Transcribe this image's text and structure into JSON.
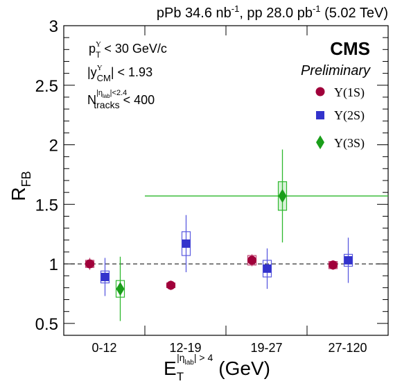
{
  "header": {
    "lumi_prefix": "pPb 34.6 nb",
    "lumi_sup1": "-1",
    "lumi_mid": ", pp 28.0 pb",
    "lumi_sup2": "-1",
    "lumi_suffix": " (5.02 TeV)"
  },
  "branding": {
    "experiment": "CMS",
    "status": "Preliminary"
  },
  "cuts": {
    "pt_main": "p",
    "pt_sup": "Υ",
    "pt_sub": "T",
    "pt_rest": " < 30 GeV/c",
    "y_main": "|y",
    "y_sup": "Υ",
    "y_sub": "CM",
    "y_rest": "| < 1.93",
    "n_main": "N",
    "n_sup": "|η",
    "n_sup_sub": "lab",
    "n_sup_rest": "|<2.4",
    "n_sub": "tracks",
    "n_rest": " < 400"
  },
  "axes": {
    "ylabel_main": "R",
    "ylabel_sub": "FB",
    "xlabel_main": "E",
    "xlabel_sub": "T",
    "xlabel_sup": "|η",
    "xlabel_sup_sub": "lab",
    "xlabel_sup_rest": "| > 4",
    "xlabel_unit": "(GeV)"
  },
  "colors": {
    "1S": "#a0003a",
    "2S": "#3333cc",
    "3S": "#1a9e1a"
  },
  "chart_data": {
    "type": "scatter",
    "categories": [
      "0-12",
      "12-19",
      "19-27",
      "27-120"
    ],
    "ylim": [
      0.4,
      3.0
    ],
    "yticks": [
      0.5,
      1,
      1.5,
      2,
      2.5,
      3
    ],
    "ytick_labels": [
      "0.5",
      "1",
      "1.5",
      "2",
      "2.5",
      "3"
    ],
    "reference_line": 1.0,
    "legend_position": "top-right",
    "series": [
      {
        "name": "Υ(1S)",
        "key": "1S",
        "marker": "circle",
        "values": [
          1.0,
          0.82,
          1.03,
          0.99
        ],
        "stat_err": [
          0.05,
          0.04,
          0.05,
          0.04
        ],
        "syst_err": [
          0.03,
          0.02,
          0.04,
          0.03
        ]
      },
      {
        "name": "Υ(2S)",
        "key": "2S",
        "marker": "square",
        "values": [
          0.89,
          1.17,
          0.96,
          1.03
        ],
        "stat_err": [
          0.16,
          0.24,
          0.17,
          0.19
        ],
        "syst_err": [
          0.05,
          0.1,
          0.07,
          0.05
        ]
      },
      {
        "name": "Υ(3S)",
        "key": "3S",
        "marker": "diamond",
        "values": [
          0.79,
          1.57
        ],
        "x_index": [
          0,
          2
        ],
        "stat_err": [
          0.27,
          0.39
        ],
        "syst_err": [
          0.07,
          0.12
        ],
        "x_err_wide": [
          false,
          true
        ]
      }
    ]
  }
}
